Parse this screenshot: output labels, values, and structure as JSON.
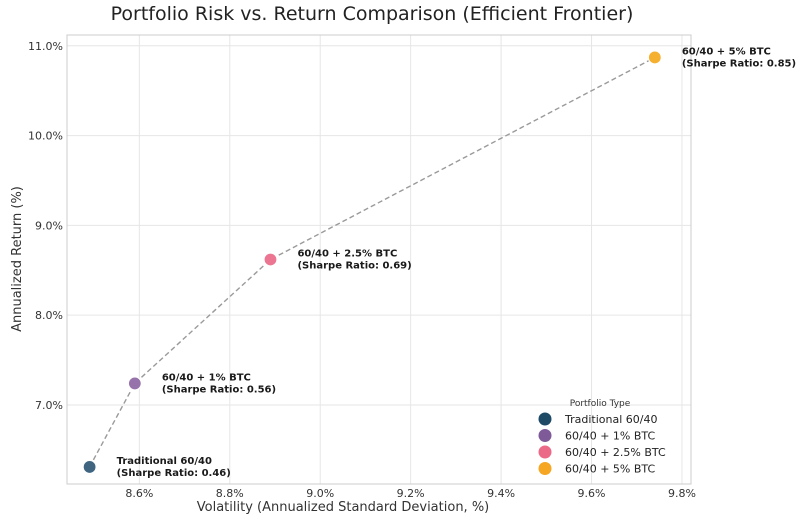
{
  "chart_data": {
    "type": "scatter",
    "title": "Portfolio Risk vs. Return Comparison (Efficient Frontier)",
    "xlabel": "Volatility (Annualized Standard Deviation, %)",
    "ylabel": "Annualized Return (%)",
    "xlim": [
      8.44,
      9.82
    ],
    "ylim": [
      6.12,
      11.12
    ],
    "xticks": [
      {
        "value": 8.6,
        "label": "8.6%"
      },
      {
        "value": 8.8,
        "label": "8.8%"
      },
      {
        "value": 9.0,
        "label": "9.0%"
      },
      {
        "value": 9.2,
        "label": "9.2%"
      },
      {
        "value": 9.4,
        "label": "9.4%"
      },
      {
        "value": 9.6,
        "label": "9.6%"
      },
      {
        "value": 9.8,
        "label": "9.8%"
      }
    ],
    "yticks": [
      {
        "value": 7.0,
        "label": "7.0%"
      },
      {
        "value": 8.0,
        "label": "8.0%"
      },
      {
        "value": 9.0,
        "label": "9.0%"
      },
      {
        "value": 10.0,
        "label": "10.0%"
      },
      {
        "value": 11.0,
        "label": "11.0%"
      }
    ],
    "grid": true,
    "frontier_line": "dashed",
    "points": [
      {
        "name": "Traditional 60/40",
        "x": 8.49,
        "y": 6.31,
        "color": "#3f6580",
        "label": "Traditional 60/40",
        "sharpe": "(Sharpe Ratio: 0.46)"
      },
      {
        "name": "60/40 + 1% BTC",
        "x": 8.59,
        "y": 7.24,
        "color": "#9673ab",
        "label": "60/40 + 1% BTC",
        "sharpe": "(Sharpe Ratio: 0.56)"
      },
      {
        "name": "60/40 + 2.5% BTC",
        "x": 8.89,
        "y": 8.62,
        "color": "#ec7591",
        "label": "60/40 + 2.5% BTC",
        "sharpe": "(Sharpe Ratio: 0.69)"
      },
      {
        "name": "60/40 + 5% BTC",
        "x": 9.74,
        "y": 10.87,
        "color": "#f6b02f",
        "label": "60/40 + 5% BTC",
        "sharpe": "(Sharpe Ratio: 0.85)"
      }
    ],
    "legend": {
      "title": "Portfolio Type",
      "placement": "bottom-right",
      "entries": [
        {
          "label": "Traditional 60/40",
          "color": "#1f4a66"
        },
        {
          "label": "60/40 + 1% BTC",
          "color": "#7e5a98"
        },
        {
          "label": "60/40 + 2.5% BTC",
          "color": "#eb6a87"
        },
        {
          "label": "60/40 + 5% BTC",
          "color": "#f5a623"
        }
      ]
    }
  }
}
